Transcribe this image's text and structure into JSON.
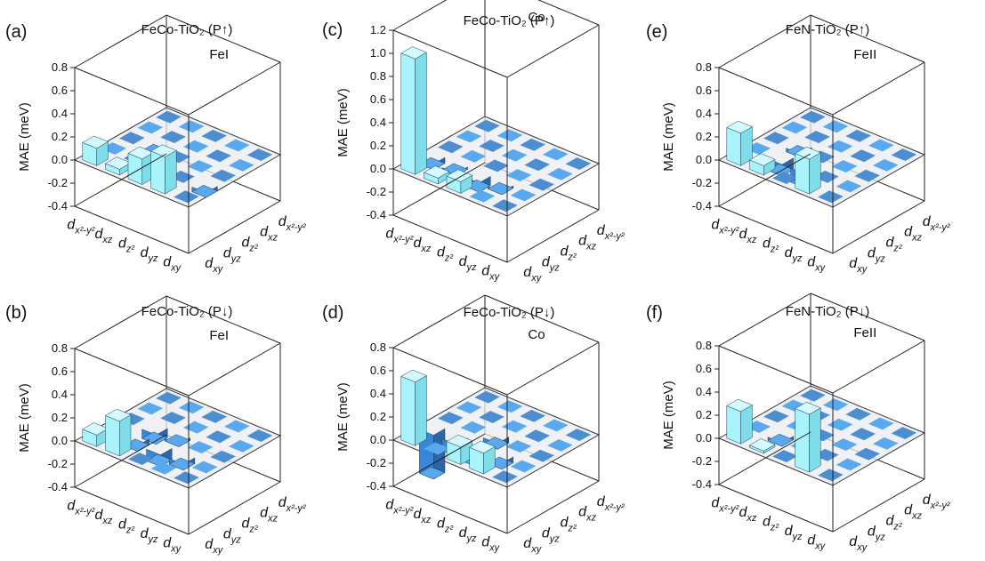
{
  "figure": {
    "bg_color": "#ffffff",
    "pos_face_color": "#a9f4fb",
    "pos_top_color": "#d3fbff",
    "pos_side_color": "#7fdde9",
    "neg_face_color": "#3a86d6",
    "neg_top_color": "#5aa9ee",
    "neg_side_color": "#2c66a8",
    "plane_color": "#e9ecf0"
  },
  "chart_data": [
    {
      "panel": "(a)",
      "type": "bar3d",
      "title": "FeCo-TiO₂ (P↑)",
      "atom": "FeI",
      "ylabel": "MAE (meV)",
      "ylim": [
        -0.4,
        0.8
      ],
      "yticks": [
        "-0.4",
        "-0.2",
        "0.0",
        "0.2",
        "0.4",
        "0.6",
        "0.8"
      ],
      "x_categories": [
        "dx²-y²",
        "dxz",
        "dz²",
        "dyz",
        "dxy"
      ],
      "y_categories": [
        "dxy",
        "dyz",
        "dz²",
        "dxz",
        "dx²-y²"
      ],
      "values": [
        [
          0.15,
          0.05,
          0.22,
          0.32,
          0.0
        ],
        [
          0.0,
          0.0,
          0.0,
          0.0,
          -0.04
        ],
        [
          0.0,
          -0.02,
          0.0,
          0.0,
          0.0
        ],
        [
          0.0,
          0.0,
          0.0,
          0.0,
          0.0
        ],
        [
          0.0,
          0.0,
          0.0,
          0.0,
          0.0
        ]
      ]
    },
    {
      "panel": "(b)",
      "type": "bar3d",
      "title": "FeCo-TiO₂ (P↓)",
      "atom": "FeI",
      "ylabel": "MAE (meV)",
      "ylim": [
        -0.4,
        0.8
      ],
      "yticks": [
        "-0.4",
        "-0.2",
        "0.0",
        "0.2",
        "0.4",
        "0.6",
        "0.8"
      ],
      "x_categories": [
        "dx²-y²",
        "dxz",
        "dz²",
        "dyz",
        "dxy"
      ],
      "y_categories": [
        "dxy",
        "dyz",
        "dz²",
        "dxz",
        "dx²-y²"
      ],
      "values": [
        [
          0.1,
          0.3,
          0.0,
          0.0,
          0.0
        ],
        [
          0.0,
          -0.05,
          -0.1,
          -0.05,
          0.0
        ],
        [
          0.0,
          -0.08,
          -0.02,
          0.0,
          0.0
        ],
        [
          0.0,
          0.0,
          0.0,
          0.0,
          0.0
        ],
        [
          0.0,
          0.0,
          0.0,
          0.0,
          0.0
        ]
      ]
    },
    {
      "panel": "(c)",
      "type": "bar3d",
      "title": "FeCo-TiO₂ (P↑)",
      "atom": "Co",
      "ylabel": "MAE (meV)",
      "ylim": [
        -0.4,
        1.2
      ],
      "yticks": [
        "-0.4",
        "-0.2",
        "0.0",
        "0.2",
        "0.4",
        "0.6",
        "0.8",
        "1.0",
        "1.2"
      ],
      "x_categories": [
        "dx²-y²",
        "dxz",
        "dz²",
        "dyz",
        "dxy"
      ],
      "y_categories": [
        "dxy",
        "dyz",
        "dz²",
        "dxz",
        "dx²-y²"
      ],
      "values": [
        [
          1.0,
          0.05,
          0.1,
          0.0,
          0.0
        ],
        [
          -0.05,
          -0.02,
          -0.08,
          -0.02,
          0.0
        ],
        [
          0.0,
          0.0,
          0.0,
          0.0,
          0.0
        ],
        [
          0.0,
          0.0,
          0.0,
          0.0,
          0.0
        ],
        [
          0.0,
          0.0,
          0.0,
          0.0,
          0.0
        ]
      ]
    },
    {
      "panel": "(d)",
      "type": "bar3d",
      "title": "FeCo-TiO₂ (P↓)",
      "atom": "Co",
      "ylabel": "MAE (meV)",
      "ylim": [
        -0.4,
        0.8
      ],
      "yticks": [
        "-0.4",
        "-0.2",
        "0.0",
        "0.2",
        "0.4",
        "0.6",
        "0.8"
      ],
      "x_categories": [
        "dx²-y²",
        "dxz",
        "dz²",
        "dyz",
        "dxy"
      ],
      "y_categories": [
        "dxy",
        "dyz",
        "dz²",
        "dxz",
        "dx²-y²"
      ],
      "values": [
        [
          0.55,
          0.0,
          0.15,
          0.18,
          0.0
        ],
        [
          -0.38,
          -0.1,
          -0.12,
          -0.05,
          0.0
        ],
        [
          0.0,
          0.0,
          -0.05,
          0.0,
          0.0
        ],
        [
          0.0,
          0.0,
          0.0,
          0.0,
          0.0
        ],
        [
          0.0,
          0.0,
          0.0,
          0.0,
          0.0
        ]
      ]
    },
    {
      "panel": "(e)",
      "type": "bar3d",
      "title": "FeN-TiO₂ (P↑)",
      "atom": "FeII",
      "ylabel": "MAE (meV)",
      "ylim": [
        -0.4,
        0.8
      ],
      "yticks": [
        "-0.4",
        "-0.2",
        "0.0",
        "0.2",
        "0.4",
        "0.6",
        "0.8"
      ],
      "x_categories": [
        "dx²-y²",
        "dxz",
        "dz²",
        "dyz",
        "dxy"
      ],
      "y_categories": [
        "dxy",
        "dyz",
        "dz²",
        "dxz",
        "dx²-y²"
      ],
      "values": [
        [
          0.28,
          0.08,
          0.0,
          0.3,
          0.0
        ],
        [
          0.0,
          -0.1,
          -0.12,
          0.0,
          0.0
        ],
        [
          0.0,
          -0.03,
          0.0,
          0.0,
          0.0
        ],
        [
          0.0,
          0.0,
          0.0,
          0.0,
          0.0
        ],
        [
          0.0,
          0.0,
          0.0,
          0.0,
          0.0
        ]
      ]
    },
    {
      "panel": "(f)",
      "type": "bar3d",
      "title": "FeN-TiO₂ (P↓)",
      "atom": "FeII",
      "ylabel": "MAE (meV)",
      "ylim": [
        -0.4,
        0.8
      ],
      "yticks": [
        "-0.4",
        "-0.2",
        "0.0",
        "0.2",
        "0.4",
        "0.6",
        "0.8"
      ],
      "x_categories": [
        "dx²-y²",
        "dxz",
        "dz²",
        "dyz",
        "dxy"
      ],
      "y_categories": [
        "dxy",
        "dyz",
        "dz²",
        "dxz",
        "dx²-y²"
      ],
      "values": [
        [
          0.28,
          0.02,
          0.0,
          0.5,
          0.0
        ],
        [
          0.0,
          -0.03,
          0.0,
          0.0,
          0.0
        ],
        [
          0.0,
          0.0,
          0.0,
          0.0,
          0.0
        ],
        [
          0.0,
          0.0,
          0.0,
          0.0,
          0.0
        ],
        [
          0.0,
          0.0,
          0.0,
          0.0,
          0.0
        ]
      ]
    }
  ]
}
